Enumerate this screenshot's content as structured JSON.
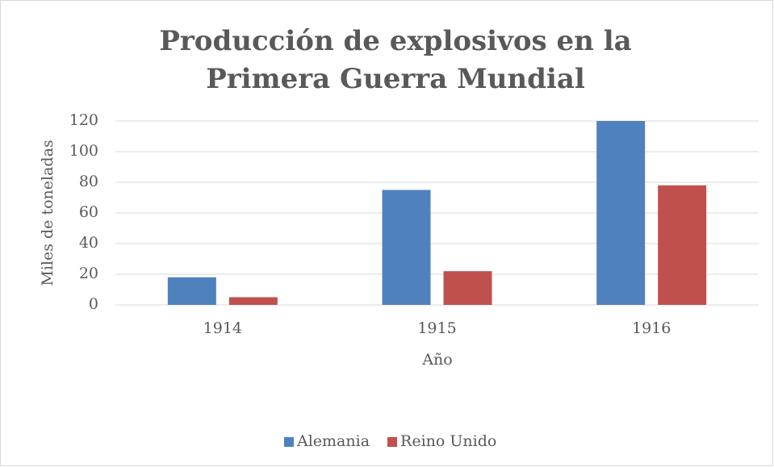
{
  "chart_data": {
    "type": "bar",
    "title": [
      "Producción de explosivos en la",
      "Primera Guerra Mundial"
    ],
    "x_label": "Año",
    "y_label": "Miles de toneladas",
    "categories": [
      "1914",
      "1915",
      "1916"
    ],
    "series": [
      {
        "name": "Alemania",
        "color": "#4f81bd",
        "values": [
          18,
          75,
          120
        ]
      },
      {
        "name": "Reino Unido",
        "color": "#c0504d",
        "values": [
          5,
          22,
          78
        ]
      }
    ],
    "ylim": [
      0,
      120
    ],
    "yticks": [
      0,
      20,
      40,
      60,
      80,
      100,
      120
    ],
    "grid": true,
    "legend": "bottom"
  }
}
